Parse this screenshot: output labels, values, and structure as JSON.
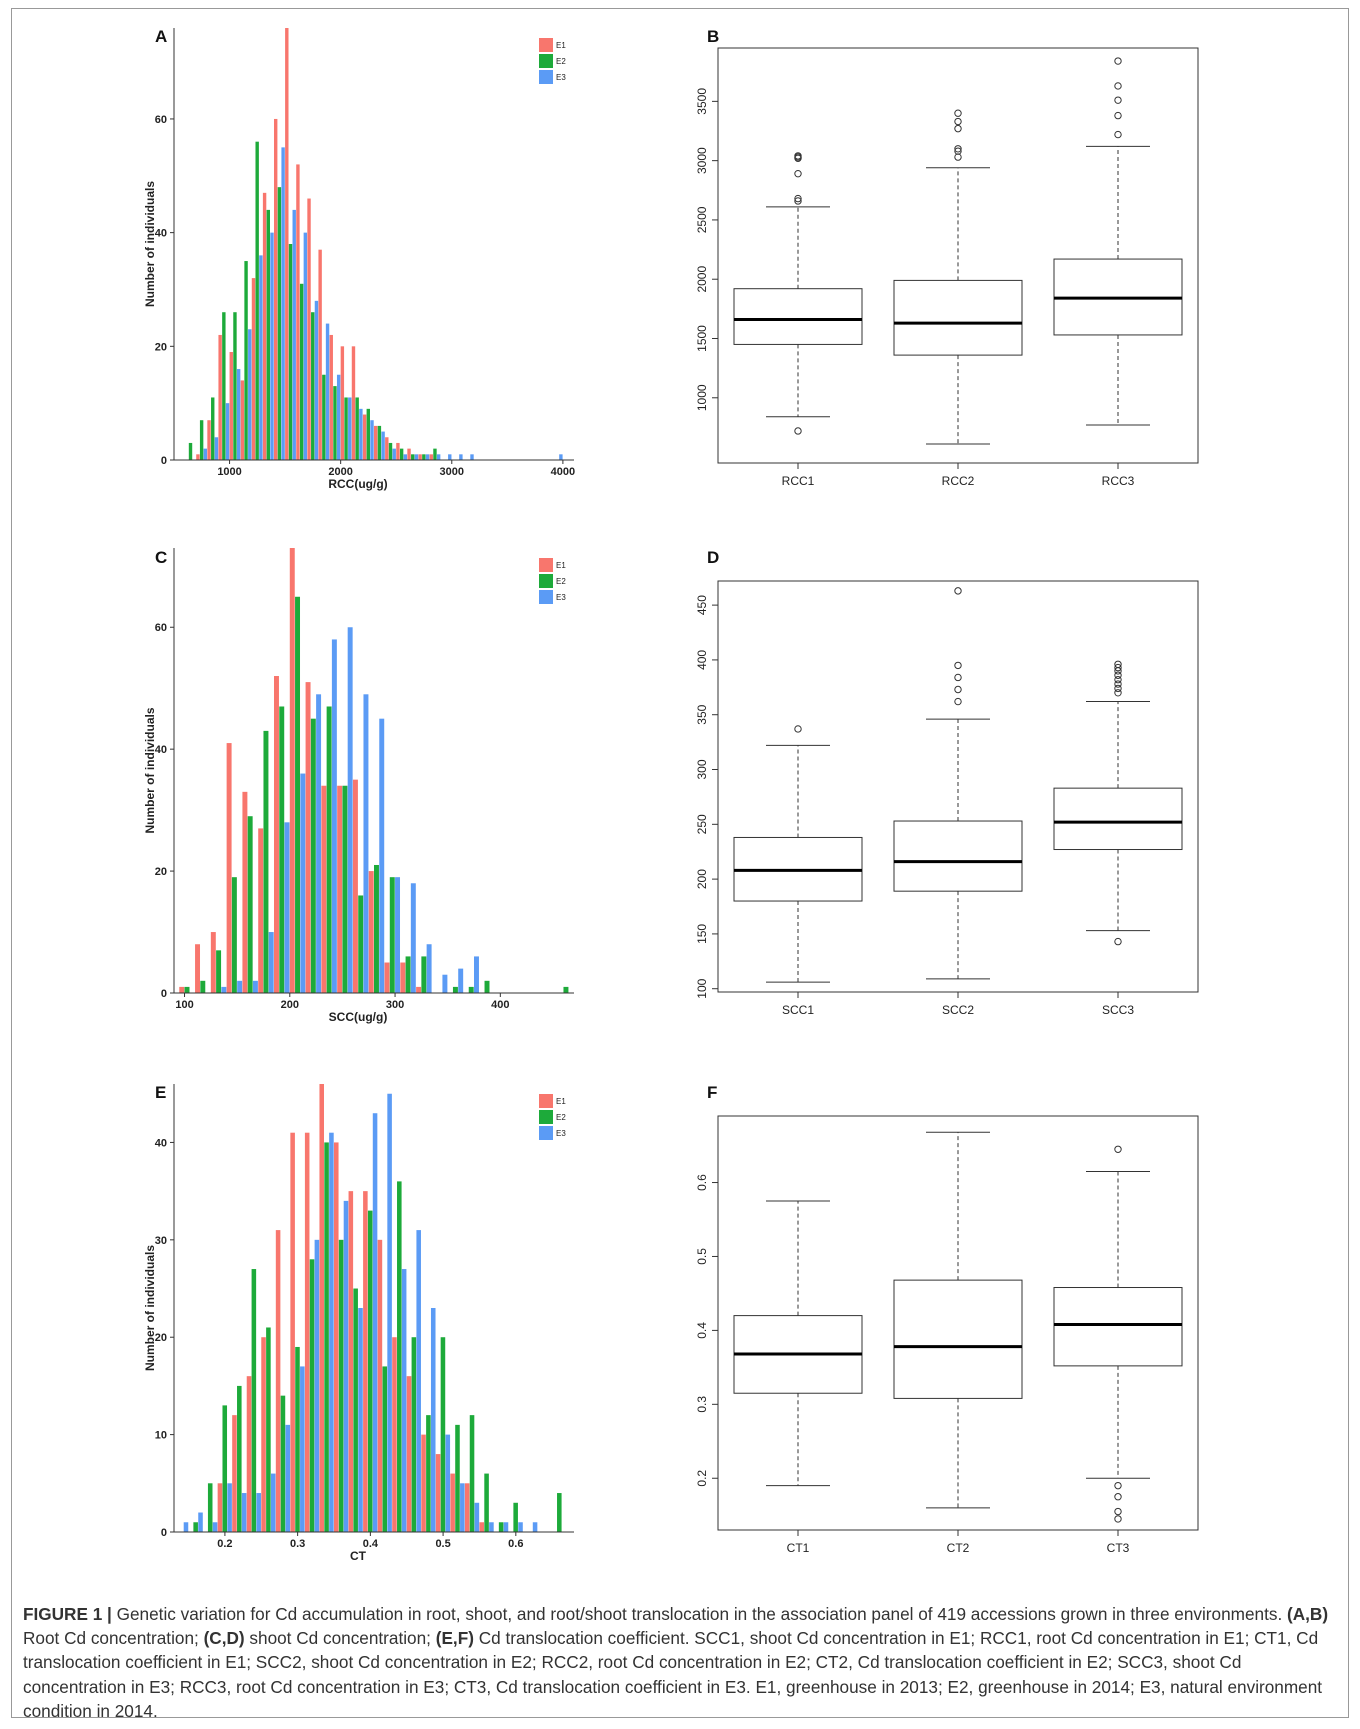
{
  "figure": {
    "panels": [
      "A",
      "B",
      "C",
      "D",
      "E",
      "F"
    ]
  },
  "caption": {
    "label": "FIGURE 1 |",
    "parts": [
      {
        "t": " Genetic variation for Cd accumulation in root, shoot, and root/shoot translocation in the association panel of 419 accessions grown in three environments. ",
        "b": false
      },
      {
        "t": "(A,B)",
        "b": true
      },
      {
        "t": " Root Cd concentration; ",
        "b": false
      },
      {
        "t": "(C,D)",
        "b": true
      },
      {
        "t": " shoot Cd concentration; ",
        "b": false
      },
      {
        "t": "(E,F)",
        "b": true
      },
      {
        "t": " Cd translocation coefficient. SCC1, shoot Cd concentration in E1; RCC1, root Cd concentration in E1; CT1, Cd translocation coefficient in E1; SCC2, shoot Cd concentration in E2; RCC2, root Cd concentration in E2; CT2, Cd translocation coefficient in E2; SCC3, shoot Cd concentration in E3; RCC3, root Cd concentration in E3; CT3, Cd translocation coefficient in E3. E1, greenhouse in 2013; E2, greenhouse in 2014; E3, natural environment condition in 2014.",
        "b": false
      }
    ]
  },
  "colors": {
    "E1": "#F8766D",
    "E2": "#1DAA3A",
    "E3": "#5B9BF5"
  },
  "chart_data": [
    {
      "panel": "A",
      "type": "bar",
      "xlabel": "RCC(ug/g)",
      "ylabel": "Number of individuals",
      "xlim": [
        500,
        4100
      ],
      "ylim": [
        0,
        76
      ],
      "xticks": [
        1000,
        2000,
        3000,
        4000
      ],
      "yticks": [
        0,
        20,
        40,
        60
      ],
      "legend": {
        "position": "top-right",
        "entries": [
          "E1",
          "E2",
          "E3"
        ]
      },
      "bin_width": 100,
      "x": [
        550,
        650,
        750,
        850,
        950,
        1050,
        1150,
        1250,
        1350,
        1450,
        1550,
        1650,
        1750,
        1850,
        1950,
        2050,
        2150,
        2250,
        2350,
        2450,
        2550,
        2650,
        2750,
        2850,
        2950,
        3050,
        3150,
        3250,
        3350,
        3450,
        3550,
        3650,
        3750,
        3850,
        3950
      ],
      "series": [
        {
          "name": "E1",
          "values": [
            0,
            0,
            1,
            7,
            22,
            19,
            14,
            32,
            47,
            60,
            76,
            52,
            46,
            37,
            22,
            20,
            20,
            8,
            6,
            4,
            3,
            2,
            1,
            1,
            0,
            0,
            0,
            0,
            0,
            0,
            0,
            0,
            0,
            0,
            0
          ]
        },
        {
          "name": "E2",
          "values": [
            0,
            3,
            7,
            11,
            26,
            26,
            35,
            56,
            44,
            48,
            38,
            31,
            26,
            15,
            13,
            11,
            11,
            9,
            6,
            3,
            2,
            1,
            1,
            2,
            0,
            0,
            0,
            0,
            0,
            0,
            0,
            0,
            0,
            0,
            0
          ]
        },
        {
          "name": "E3",
          "values": [
            0,
            0,
            2,
            4,
            10,
            16,
            23,
            36,
            40,
            55,
            44,
            40,
            28,
            24,
            15,
            11,
            9,
            7,
            5,
            2,
            1,
            1,
            1,
            1,
            1,
            1,
            1,
            0,
            0,
            0,
            0,
            0,
            0,
            0,
            1
          ]
        }
      ]
    },
    {
      "panel": "B",
      "type": "box",
      "categories": [
        "RCC1",
        "RCC2",
        "RCC3"
      ],
      "ylim": [
        450,
        3950
      ],
      "yticks": [
        1000,
        1500,
        2000,
        2500,
        3000,
        3500
      ],
      "boxes": [
        {
          "whisker_low": 840,
          "q1": 1450,
          "median": 1660,
          "q3": 1920,
          "whisker_high": 2610,
          "outliers": [
            720,
            2660,
            2680,
            2890,
            3020,
            3030,
            3040
          ]
        },
        {
          "whisker_low": 610,
          "q1": 1360,
          "median": 1630,
          "q3": 1990,
          "whisker_high": 2940,
          "outliers": [
            3030,
            3080,
            3100,
            3270,
            3330,
            3400
          ]
        },
        {
          "whisker_low": 770,
          "q1": 1530,
          "median": 1840,
          "q3": 2170,
          "whisker_high": 3120,
          "outliers": [
            3220,
            3380,
            3510,
            3630,
            3840
          ]
        }
      ]
    },
    {
      "panel": "C",
      "type": "bar",
      "xlabel": "SCC(ug/g)",
      "ylabel": "Number of individuals",
      "xlim": [
        90,
        470
      ],
      "ylim": [
        0,
        73
      ],
      "xticks": [
        100,
        200,
        300,
        400
      ],
      "yticks": [
        0,
        20,
        40,
        60
      ],
      "legend": {
        "position": "top-right",
        "entries": [
          "E1",
          "E2",
          "E3"
        ]
      },
      "bin_width": 15,
      "x": [
        102.5,
        117.5,
        132.5,
        147.5,
        162.5,
        177.5,
        192.5,
        207.5,
        222.5,
        237.5,
        252.5,
        267.5,
        282.5,
        297.5,
        312.5,
        327.5,
        342.5,
        357.5,
        372.5,
        387.5,
        402.5,
        417.5,
        432.5,
        447.5,
        462.5
      ],
      "series": [
        {
          "name": "E1",
          "values": [
            1,
            8,
            10,
            41,
            33,
            27,
            52,
            73,
            51,
            34,
            34,
            35,
            20,
            5,
            5,
            1,
            0,
            0,
            0,
            0,
            0,
            0,
            0,
            0,
            0
          ]
        },
        {
          "name": "E2",
          "values": [
            1,
            2,
            7,
            19,
            29,
            43,
            47,
            65,
            45,
            47,
            34,
            16,
            21,
            19,
            6,
            6,
            0,
            1,
            1,
            2,
            0,
            0,
            0,
            0,
            1
          ]
        },
        {
          "name": "E3",
          "values": [
            0,
            0,
            1,
            2,
            2,
            10,
            28,
            36,
            49,
            58,
            60,
            49,
            45,
            19,
            18,
            8,
            3,
            4,
            6,
            0,
            0,
            0,
            0,
            0,
            0
          ]
        }
      ]
    },
    {
      "panel": "D",
      "type": "box",
      "categories": [
        "SCC1",
        "SCC2",
        "SCC3"
      ],
      "ylim": [
        97,
        472
      ],
      "yticks": [
        100,
        150,
        200,
        250,
        300,
        350,
        400,
        450
      ],
      "boxes": [
        {
          "whisker_low": 106,
          "q1": 180,
          "median": 208,
          "q3": 238,
          "whisker_high": 322,
          "outliers": [
            337
          ]
        },
        {
          "whisker_low": 109,
          "q1": 189,
          "median": 216,
          "q3": 253,
          "whisker_high": 346,
          "outliers": [
            362,
            373,
            384,
            395,
            463
          ]
        },
        {
          "whisker_low": 153,
          "q1": 227,
          "median": 252,
          "q3": 283,
          "whisker_high": 362,
          "outliers": [
            143,
            370,
            374,
            378,
            382,
            386,
            390,
            393,
            396
          ]
        }
      ]
    },
    {
      "panel": "E",
      "type": "bar",
      "xlabel": "CT",
      "ylabel": "Number of individuals",
      "xlim": [
        0.13,
        0.68
      ],
      "ylim": [
        0,
        46
      ],
      "xticks": [
        0.2,
        0.3,
        0.4,
        0.5,
        0.6
      ],
      "yticks": [
        0,
        10,
        20,
        30,
        40
      ],
      "legend": {
        "position": "top-right",
        "entries": [
          "E1",
          "E2",
          "E3"
        ]
      },
      "bin_width": 0.02,
      "x": [
        0.14,
        0.16,
        0.18,
        0.2,
        0.22,
        0.24,
        0.26,
        0.28,
        0.3,
        0.32,
        0.34,
        0.36,
        0.38,
        0.4,
        0.42,
        0.44,
        0.46,
        0.48,
        0.5,
        0.52,
        0.54,
        0.56,
        0.58,
        0.6,
        0.62,
        0.64,
        0.66
      ],
      "series": [
        {
          "name": "E1",
          "values": [
            0,
            0,
            0,
            5,
            12,
            16,
            20,
            31,
            41,
            41,
            46,
            40,
            35,
            35,
            30,
            20,
            16,
            10,
            8,
            6,
            5,
            1,
            0,
            0,
            0,
            0,
            0
          ]
        },
        {
          "name": "E2",
          "values": [
            0,
            1,
            5,
            13,
            15,
            27,
            21,
            14,
            19,
            28,
            40,
            30,
            25,
            33,
            17,
            36,
            20,
            12,
            20,
            11,
            12,
            6,
            1,
            3,
            0,
            0,
            4
          ]
        },
        {
          "name": "E3",
          "values": [
            1,
            2,
            1,
            5,
            4,
            4,
            6,
            11,
            17,
            30,
            41,
            34,
            23,
            43,
            45,
            27,
            31,
            23,
            10,
            5,
            3,
            1,
            1,
            1,
            1,
            0,
            0
          ]
        }
      ]
    },
    {
      "panel": "F",
      "type": "box",
      "categories": [
        "CT1",
        "CT2",
        "CT3"
      ],
      "ylim": [
        0.13,
        0.69
      ],
      "yticks": [
        0.2,
        0.3,
        0.4,
        0.5,
        0.6
      ],
      "boxes": [
        {
          "whisker_low": 0.19,
          "q1": 0.315,
          "median": 0.368,
          "q3": 0.42,
          "whisker_high": 0.575,
          "outliers": []
        },
        {
          "whisker_low": 0.16,
          "q1": 0.308,
          "median": 0.378,
          "q3": 0.468,
          "whisker_high": 0.668,
          "outliers": []
        },
        {
          "whisker_low": 0.2,
          "q1": 0.352,
          "median": 0.408,
          "q3": 0.458,
          "whisker_high": 0.615,
          "outliers": [
            0.145,
            0.155,
            0.175,
            0.19,
            0.645
          ]
        }
      ]
    }
  ]
}
